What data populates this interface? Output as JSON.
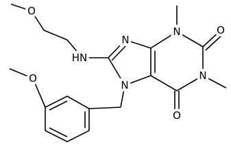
{
  "atoms": [
    "O",
    "HN",
    "N",
    "N",
    "N",
    "N",
    "O",
    "O",
    "O"
  ]
}
